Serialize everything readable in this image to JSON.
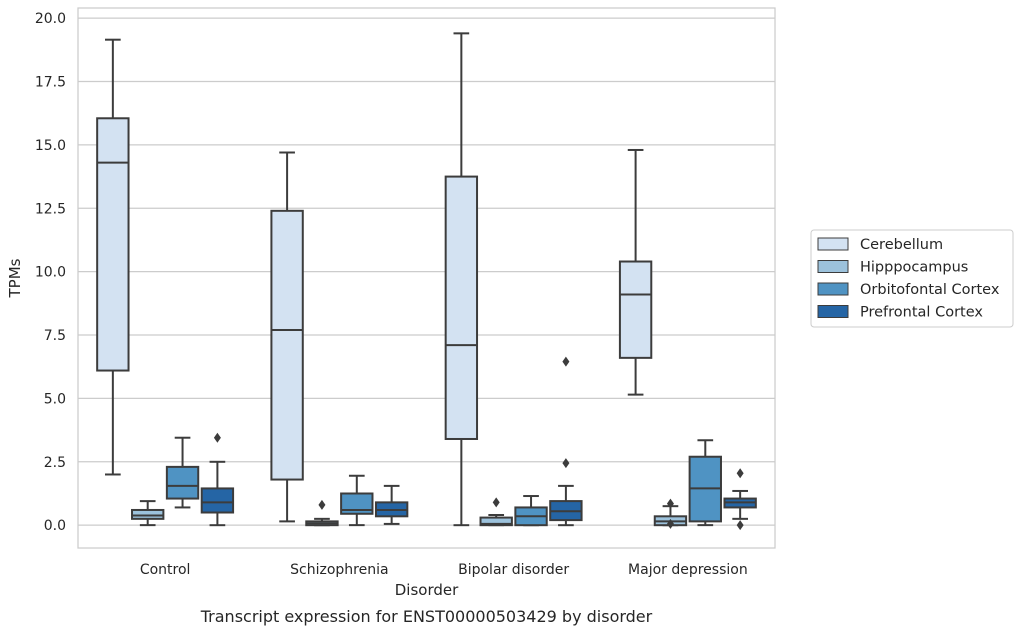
{
  "chart_data": {
    "type": "box",
    "title": "",
    "caption": "Transcript expression for ENST00000503429 by disorder",
    "xlabel": "Disorder",
    "ylabel": "TPMs",
    "ylim": [
      -0.9,
      20.4
    ],
    "yticks": [
      0.0,
      2.5,
      5.0,
      7.5,
      10.0,
      12.5,
      15.0,
      17.5,
      20.0
    ],
    "ytick_labels": [
      "0.0",
      "2.5",
      "5.0",
      "7.5",
      "10.0",
      "12.5",
      "15.0",
      "17.5",
      "20.0"
    ],
    "grid": "horizontal",
    "legend_position": "right",
    "categories": [
      "Control",
      "Schizophrenia",
      "Bipolar disorder",
      "Major depression"
    ],
    "series": [
      {
        "name": "Cerebellum",
        "color": "#d3e2f2",
        "boxes": [
          {
            "whislo": 2.0,
            "q1": 6.1,
            "med": 14.3,
            "q3": 16.05,
            "whishi": 19.15,
            "fliers": []
          },
          {
            "whislo": 0.15,
            "q1": 1.8,
            "med": 7.7,
            "q3": 12.4,
            "whishi": 14.7,
            "fliers": []
          },
          {
            "whislo": 0.0,
            "q1": 3.4,
            "med": 7.1,
            "q3": 13.75,
            "whishi": 19.4,
            "fliers": []
          },
          {
            "whislo": 5.15,
            "q1": 6.6,
            "med": 9.1,
            "q3": 10.4,
            "whishi": 14.8,
            "fliers": []
          }
        ]
      },
      {
        "name": "Hipppocampus",
        "color": "#9cc2dc",
        "boxes": [
          {
            "whislo": 0.0,
            "q1": 0.25,
            "med": 0.38,
            "q3": 0.6,
            "whishi": 0.95,
            "fliers": []
          },
          {
            "whislo": 0.0,
            "q1": 0.0,
            "med": 0.07,
            "q3": 0.15,
            "whishi": 0.25,
            "fliers": [
              0.8
            ]
          },
          {
            "whislo": 0.0,
            "q1": 0.0,
            "med": 0.05,
            "q3": 0.3,
            "whishi": 0.4,
            "fliers": [
              0.9
            ]
          },
          {
            "whislo": 0.0,
            "q1": 0.0,
            "med": 0.15,
            "q3": 0.35,
            "whishi": 0.75,
            "fliers": [
              0.85,
              0.05
            ]
          }
        ]
      },
      {
        "name": "Orbitofontal Cortex",
        "color": "#4f93c3",
        "boxes": [
          {
            "whislo": 0.7,
            "q1": 1.05,
            "med": 1.55,
            "q3": 2.3,
            "whishi": 3.45,
            "fliers": []
          },
          {
            "whislo": 0.0,
            "q1": 0.45,
            "med": 0.6,
            "q3": 1.25,
            "whishi": 1.95,
            "fliers": []
          },
          {
            "whislo": 0.0,
            "q1": 0.0,
            "med": 0.35,
            "q3": 0.7,
            "whishi": 1.15,
            "fliers": []
          },
          {
            "whislo": 0.0,
            "q1": 0.15,
            "med": 1.45,
            "q3": 2.7,
            "whishi": 3.35,
            "fliers": []
          }
        ]
      },
      {
        "name": "Prefrontal Cortex",
        "color": "#2565a5",
        "boxes": [
          {
            "whislo": 0.0,
            "q1": 0.5,
            "med": 0.9,
            "q3": 1.45,
            "whishi": 2.5,
            "fliers": [
              3.45
            ]
          },
          {
            "whislo": 0.05,
            "q1": 0.35,
            "med": 0.6,
            "q3": 0.9,
            "whishi": 1.55,
            "fliers": []
          },
          {
            "whislo": 0.0,
            "q1": 0.2,
            "med": 0.55,
            "q3": 0.95,
            "whishi": 1.55,
            "fliers": [
              6.45,
              2.45
            ]
          },
          {
            "whislo": 0.25,
            "q1": 0.7,
            "med": 0.9,
            "q3": 1.05,
            "whishi": 1.35,
            "fliers": [
              2.05,
              0.0
            ]
          }
        ]
      }
    ]
  }
}
